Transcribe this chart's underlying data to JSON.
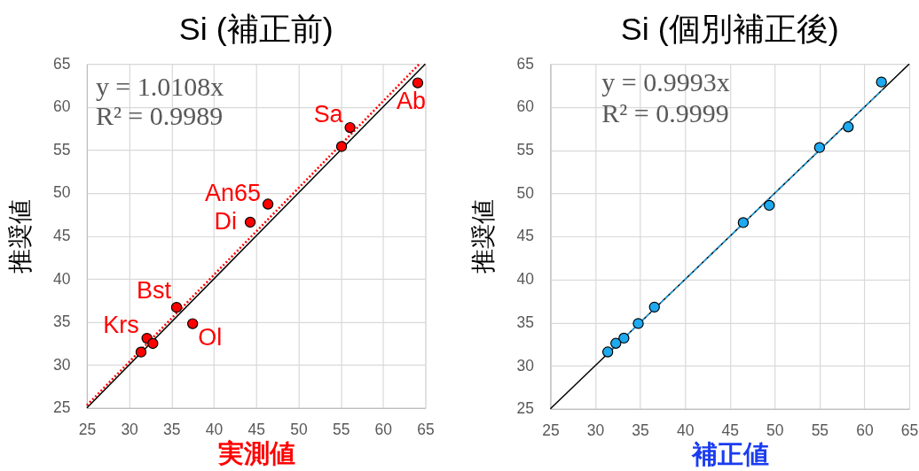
{
  "chart_data": [
    {
      "type": "scatter",
      "title": "Si (補正前)",
      "xlabel": "実測値",
      "ylabel": "推奨値",
      "xlim": [
        25,
        65
      ],
      "ylim": [
        25,
        65
      ],
      "xticks": [
        25,
        30,
        35,
        40,
        45,
        50,
        55,
        60,
        65
      ],
      "yticks": [
        25,
        30,
        35,
        40,
        45,
        50,
        55,
        60,
        65
      ],
      "grid": true,
      "series": [
        {
          "type": "line",
          "color": "#000000",
          "line_style": "solid",
          "x": [
            25,
            65
          ],
          "values": [
            25,
            65
          ]
        },
        {
          "type": "line",
          "color": "#ff0000",
          "line_style": "dotted",
          "x": [
            25,
            64.3
          ],
          "values": [
            25.3,
            65.0
          ]
        },
        {
          "type": "scatter",
          "color": "#ff0000",
          "marker": "circle",
          "x": [
            64.1,
            56.1,
            55.1,
            46.4,
            44.3,
            35.6,
            37.5,
            32.1,
            32.8,
            31.4
          ],
          "values": [
            62.8,
            57.6,
            55.4,
            48.7,
            46.6,
            36.7,
            34.8,
            33.1,
            32.5,
            31.5
          ]
        }
      ],
      "annotations": [
        "y = 1.0108x",
        "R² = 0.9989",
        {
          "text": "Ab",
          "x": 64.1,
          "y": 62.8
        },
        {
          "text": "Sa",
          "x": 56.1,
          "y": 57.6
        },
        {
          "text": "An65",
          "x": 46.4,
          "y": 48.7
        },
        {
          "text": "Di",
          "x": 44.3,
          "y": 46.6
        },
        {
          "text": "Bst",
          "x": 35.6,
          "y": 36.7
        },
        {
          "text": "Krs",
          "x": 32.1,
          "y": 33.1
        },
        {
          "text": "Ol",
          "x": 37.5,
          "y": 34.8
        }
      ]
    },
    {
      "type": "scatter",
      "title": "Si (個別補正後)",
      "xlabel": "補正値",
      "ylabel": "推奨値",
      "xlim": [
        25,
        65
      ],
      "ylim": [
        25,
        65
      ],
      "xticks": [
        25,
        30,
        35,
        40,
        45,
        50,
        55,
        60,
        65
      ],
      "yticks": [
        25,
        30,
        35,
        40,
        45,
        50,
        55,
        60,
        65
      ],
      "grid": true,
      "series": [
        {
          "type": "line",
          "color": "#000000",
          "line_style": "solid",
          "x": [
            25,
            65
          ],
          "values": [
            25,
            65
          ]
        },
        {
          "type": "line",
          "color": "#1eaaf0",
          "line_style": "dashed",
          "x": [
            31.4,
            62.0
          ],
          "values": [
            31.4,
            62.0
          ]
        },
        {
          "type": "scatter",
          "color": "#1eaaf0",
          "marker": "circle",
          "x": [
            61.9,
            58.2,
            55.0,
            49.4,
            46.5,
            36.6,
            34.8,
            33.2,
            32.3,
            31.4
          ],
          "values": [
            62.9,
            57.7,
            55.3,
            48.6,
            46.6,
            36.8,
            34.9,
            33.2,
            32.6,
            31.6
          ]
        }
      ],
      "annotations": [
        "y = 0.9993x",
        "R² = 0.9999"
      ]
    }
  ]
}
